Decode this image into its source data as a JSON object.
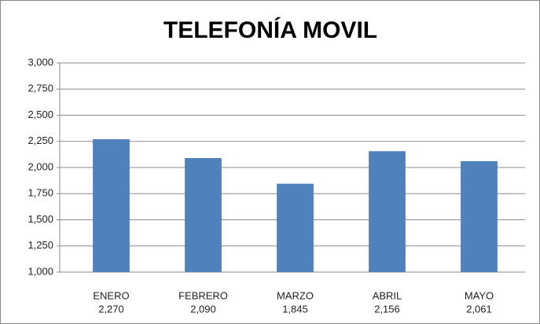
{
  "chart_data": {
    "type": "bar",
    "title": "TELEFONÍA MOVIL",
    "categories": [
      "ENERO",
      "FEBRERO",
      "MARZO",
      "ABRIL",
      "MAYO"
    ],
    "values": [
      2270,
      2090,
      1845,
      2156,
      2061
    ],
    "value_labels": [
      "2,270",
      "2,090",
      "1,845",
      "2,156",
      "2,061"
    ],
    "color": "#4f81bd",
    "ylim": [
      1000,
      3000
    ],
    "yticks": [
      {
        "value": 1000,
        "label": "1,000"
      },
      {
        "value": 1250,
        "label": "1,250"
      },
      {
        "value": 1500,
        "label": "1,500"
      },
      {
        "value": 1750,
        "label": "1,750"
      },
      {
        "value": 2000,
        "label": "2,000"
      },
      {
        "value": 2250,
        "label": "2,250"
      },
      {
        "value": 2500,
        "label": "2,500"
      },
      {
        "value": 2750,
        "label": "2,750"
      },
      {
        "value": 3000,
        "label": "3,000"
      }
    ],
    "grid": true
  }
}
